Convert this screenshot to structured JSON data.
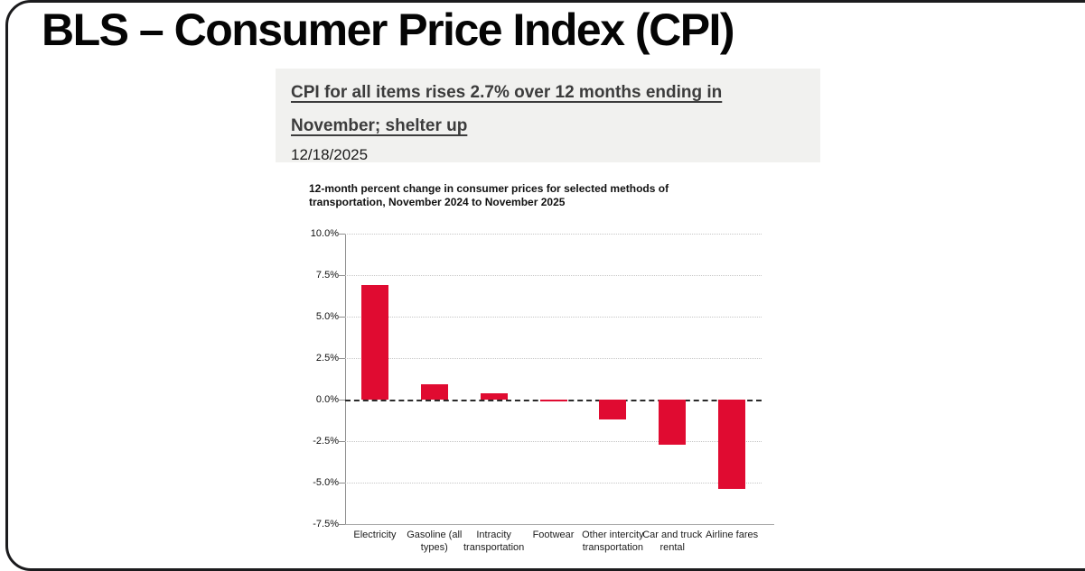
{
  "page_title": "BLS – Consumer Price Index (CPI)",
  "article": {
    "headline": "CPI for all items rises 2.7% over 12 months ending in November; shelter up",
    "date": "12/18/2025"
  },
  "chart_data": {
    "type": "bar",
    "title": "12-month percent change in consumer prices for selected methods of\ntransportation, November 2024 to November 2025",
    "categories": [
      "Electricity",
      "Gasoline (all\ntypes)",
      "Intracity\ntransportation",
      "Footwear",
      "Other intercity\ntransportation",
      "Car and truck\nrental",
      "Airline fares"
    ],
    "values": [
      6.9,
      0.9,
      0.4,
      -0.1,
      -1.2,
      -2.7,
      -5.4
    ],
    "xlabel": "",
    "ylabel": "",
    "ylim": [
      -7.5,
      10.0
    ],
    "ytick_step": 2.5,
    "ytick_labels": [
      "10.0%",
      "7.5%",
      "5.0%",
      "2.5%",
      "0.0%",
      "-2.5%",
      "-5.0%",
      "-7.5%"
    ],
    "grid": true,
    "zero_line": "dashed",
    "legend": "none",
    "bar_color": "#e00b31",
    "axis_color": "#8f8f8f"
  }
}
